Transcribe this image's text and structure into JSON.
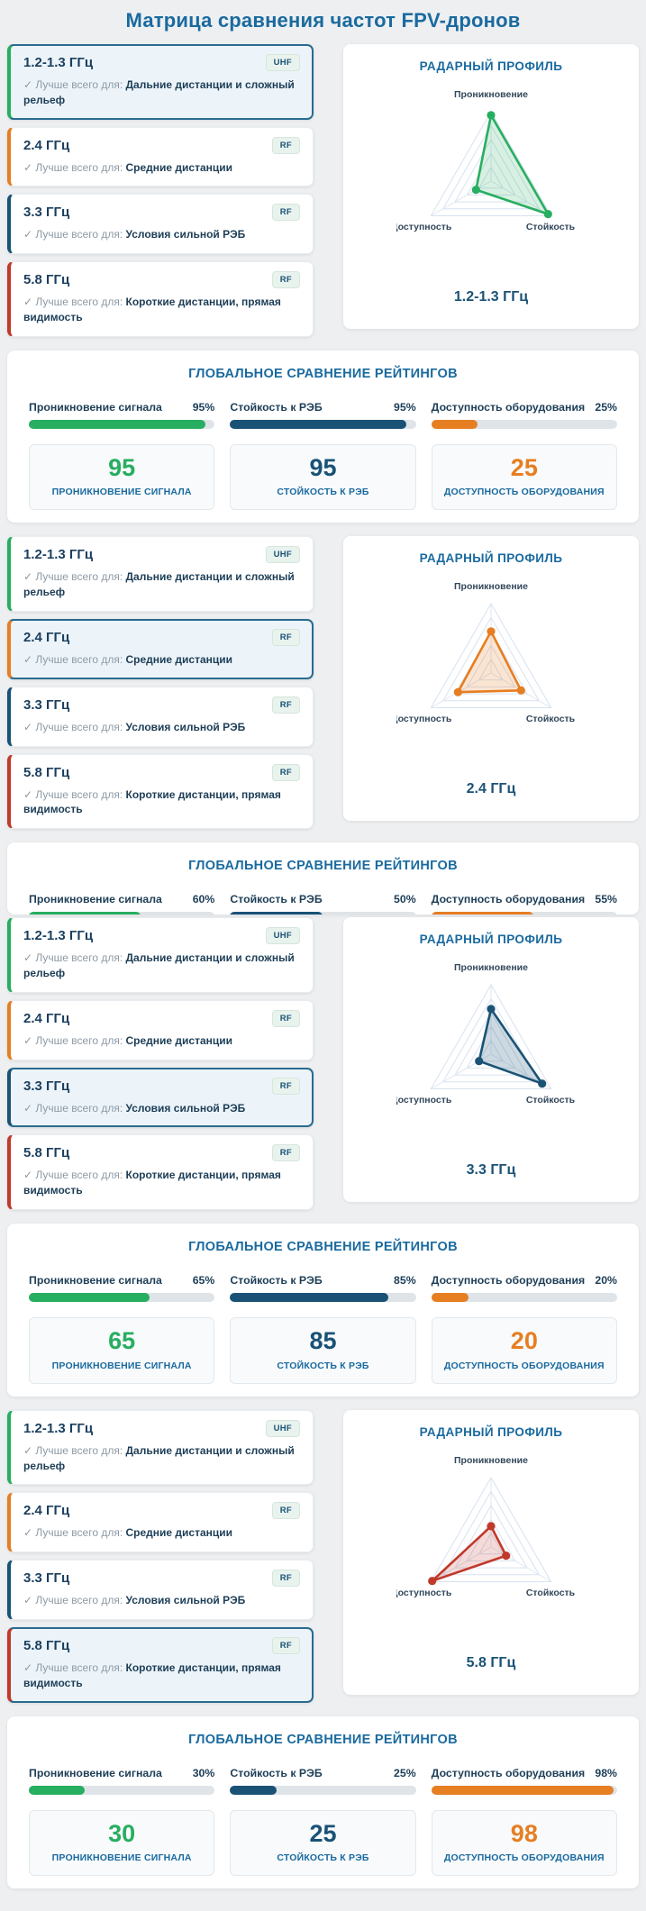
{
  "page_title": "Матрица сравнения частот FPV-дронов",
  "frequency_cards": [
    {
      "title": "1.2-1.3 ГГц",
      "badge": "UHF",
      "best_for_prefix": "✓ Лучше всего для:",
      "best_for": "Дальние дистанции и сложный рельеф",
      "accent_color": "#27ae60"
    },
    {
      "title": "2.4 ГГц",
      "badge": "RF",
      "best_for_prefix": "✓ Лучше всего для:",
      "best_for": "Средние дистанции",
      "accent_color": "#e67e22"
    },
    {
      "title": "3.3 ГГц",
      "badge": "RF",
      "best_for_prefix": "✓ Лучше всего для:",
      "best_for": "Условия сильной РЭБ",
      "accent_color": "#1a5276"
    },
    {
      "title": "5.8 ГГц",
      "badge": "RF",
      "best_for_prefix": "✓ Лучше всего для:",
      "best_for": "Короткие дистанции, прямая видимость",
      "accent_color": "#c0392b"
    }
  ],
  "radar_panel": {
    "title": "РАДАРНЫЙ ПРОФИЛЬ",
    "axis_top": "Проникновение",
    "axis_right": "Стойкость",
    "axis_left": "Доступность"
  },
  "global_panel_title": "ГЛОБАЛЬНОЕ СРАВНЕНИЕ РЕЙТИНГОВ",
  "sections": [
    {
      "selected_index": 0,
      "radar_label": "1.2-1.3 ГГц",
      "radar_color": "#27ae60",
      "radar_fill": "rgba(39,174,96,0.18)",
      "values": [
        95,
        95,
        25
      ],
      "global": {
        "truncated": false,
        "metrics": [
          {
            "label": "Проникновение сигнала",
            "pct": "95%",
            "value": 95,
            "color": "#27ae60",
            "score": "95",
            "score_label": "ПРОНИКНОВЕНИЕ СИГНАЛА"
          },
          {
            "label": "Стойкость к РЭБ",
            "pct": "95%",
            "value": 95,
            "color": "#1a5276",
            "score": "95",
            "score_label": "СТОЙКОСТЬ К РЭБ"
          },
          {
            "label": "Доступность оборудования",
            "pct": "25%",
            "value": 25,
            "color": "#e67e22",
            "score": "25",
            "score_label": "ДОСТУПНОСТЬ ОБОРУДОВАНИЯ"
          }
        ]
      }
    },
    {
      "selected_index": 1,
      "radar_label": "2.4 ГГц",
      "radar_color": "#e67e22",
      "radar_fill": "rgba(230,126,34,0.2)",
      "values": [
        60,
        50,
        55
      ],
      "global": {
        "truncated": true,
        "metrics": [
          {
            "label": "Проникновение сигнала",
            "pct": "60%",
            "value": 60,
            "color": "#27ae60",
            "score": "60",
            "score_label": "ПРОНИКНОВЕНИЕ СИГНАЛА"
          },
          {
            "label": "Стойкость к РЭБ",
            "pct": "50%",
            "value": 50,
            "color": "#1a5276",
            "score": "50",
            "score_label": "СТОЙКОСТЬ К РЭБ"
          },
          {
            "label": "Доступность оборудования",
            "pct": "55%",
            "value": 55,
            "color": "#e67e22",
            "score": "55",
            "score_label": "ДОСТУПНОСТЬ ОБОРУДОВАНИЯ"
          }
        ]
      }
    },
    {
      "selected_index": 2,
      "radar_label": "3.3 ГГц",
      "radar_color": "#1a5276",
      "radar_fill": "rgba(26,82,118,0.22)",
      "values": [
        65,
        85,
        20
      ],
      "global": {
        "truncated": false,
        "metrics": [
          {
            "label": "Проникновение сигнала",
            "pct": "65%",
            "value": 65,
            "color": "#27ae60",
            "score": "65",
            "score_label": "ПРОНИКНОВЕНИЕ СИГНАЛА"
          },
          {
            "label": "Стойкость к РЭБ",
            "pct": "85%",
            "value": 85,
            "color": "#1a5276",
            "score": "85",
            "score_label": "СТОЙКОСТЬ К РЭБ"
          },
          {
            "label": "Доступность оборудования",
            "pct": "20%",
            "value": 20,
            "color": "#e67e22",
            "score": "20",
            "score_label": "ДОСТУПНОСТЬ ОБОРУДОВАНИЯ"
          }
        ]
      }
    },
    {
      "selected_index": 3,
      "radar_label": "5.8 ГГц",
      "radar_color": "#c0392b",
      "radar_fill": "rgba(192,57,43,0.18)",
      "values": [
        30,
        25,
        98
      ],
      "global": {
        "truncated": false,
        "metrics": [
          {
            "label": "Проникновение сигнала",
            "pct": "30%",
            "value": 30,
            "color": "#27ae60",
            "score": "30",
            "score_label": "ПРОНИКНОВЕНИЕ СИГНАЛА"
          },
          {
            "label": "Стойкость к РЭБ",
            "pct": "25%",
            "value": 25,
            "color": "#1a5276",
            "score": "25",
            "score_label": "СТОЙКОСТЬ К РЭБ"
          },
          {
            "label": "Доступность оборудования",
            "pct": "98%",
            "value": 98,
            "color": "#e67e22",
            "score": "98",
            "score_label": "ДОСТУПНОСТЬ ОБОРУДОВАНИЯ"
          }
        ]
      }
    }
  ],
  "chart_data": [
    {
      "type": "radar",
      "title": "РАДАРНЫЙ ПРОФИЛЬ — 1.2-1.3 ГГц",
      "axes": [
        "Проникновение",
        "Стойкость",
        "Доступность"
      ],
      "values": [
        95,
        95,
        25
      ],
      "max": 100,
      "color": "#27ae60",
      "grid_levels": 5
    },
    {
      "type": "radar",
      "title": "РАДАРНЫЙ ПРОФИЛЬ — 2.4 ГГц",
      "axes": [
        "Проникновение",
        "Стойкость",
        "Доступность"
      ],
      "values": [
        60,
        50,
        55
      ],
      "max": 100,
      "color": "#e67e22",
      "grid_levels": 5
    },
    {
      "type": "radar",
      "title": "РАДАРНЫЙ ПРОФИЛЬ — 3.3 ГГц",
      "axes": [
        "Проникновение",
        "Стойкость",
        "Доступность"
      ],
      "values": [
        65,
        85,
        20
      ],
      "max": 100,
      "color": "#1a5276",
      "grid_levels": 5
    },
    {
      "type": "radar",
      "title": "РАДАРНЫЙ ПРОФИЛЬ — 5.8 ГГц",
      "axes": [
        "Проникновение",
        "Стойкость",
        "Доступность"
      ],
      "values": [
        30,
        25,
        98
      ],
      "max": 100,
      "color": "#c0392b",
      "grid_levels": 5
    },
    {
      "type": "bar",
      "title": "ГЛОБАЛЬНОЕ СРАВНЕНИЕ РЕЙТИНГОВ",
      "categories": [
        "Проникновение сигнала",
        "Стойкость к РЭБ",
        "Доступность оборудования"
      ],
      "series": [
        {
          "name": "1.2-1.3 ГГц",
          "values": [
            95,
            95,
            25
          ]
        },
        {
          "name": "2.4 ГГц",
          "values": [
            60,
            50,
            55
          ]
        },
        {
          "name": "3.3 ГГц",
          "values": [
            65,
            85,
            20
          ]
        },
        {
          "name": "5.8 ГГц",
          "values": [
            30,
            25,
            98
          ]
        }
      ],
      "ylim": [
        0,
        100
      ]
    }
  ]
}
